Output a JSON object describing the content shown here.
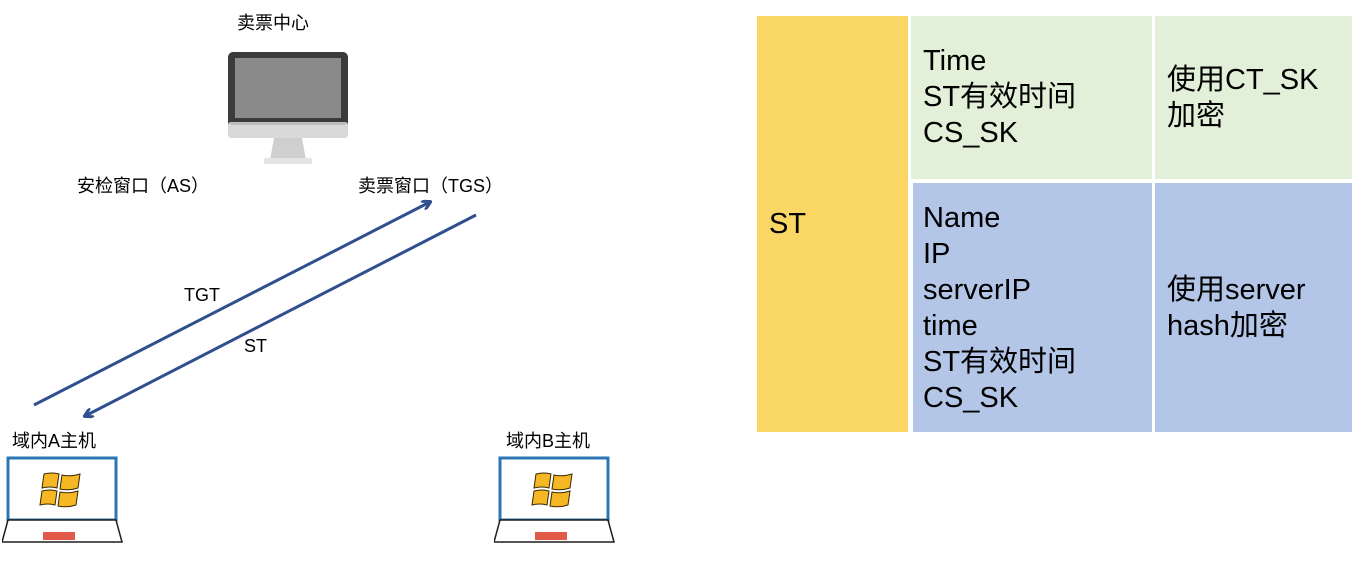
{
  "diagram": {
    "nodes": {
      "ticket_center": "卖票中心",
      "as_window": "安检窗口（AS）",
      "tgs_window": "卖票窗口（TGS）",
      "host_a": "域内A主机",
      "host_b": "域内B主机"
    },
    "edges": {
      "tgt": "TGT",
      "st": "ST"
    }
  },
  "table": {
    "row_header": "ST",
    "rows": [
      {
        "fields": [
          "Time",
          "ST有效时间",
          "CS_SK"
        ],
        "encryption": [
          "使用CT_SK",
          "加密"
        ]
      },
      {
        "fields": [
          "Name",
          "IP",
          "serverIP",
          "time",
          "ST有效时间",
          "CS_SK"
        ],
        "encryption": [
          "使用server",
          "hash加密"
        ]
      }
    ]
  },
  "colors": {
    "arrow": "#2F4F8F",
    "st_cell": "#FAD664",
    "row1_bg": "#E2EFD9",
    "row2_bg": "#B4C6E7",
    "laptop_frame": "#2E75B6",
    "laptop_keyboard_bar": "#E05A47",
    "windows_logo": "#F5B724"
  }
}
